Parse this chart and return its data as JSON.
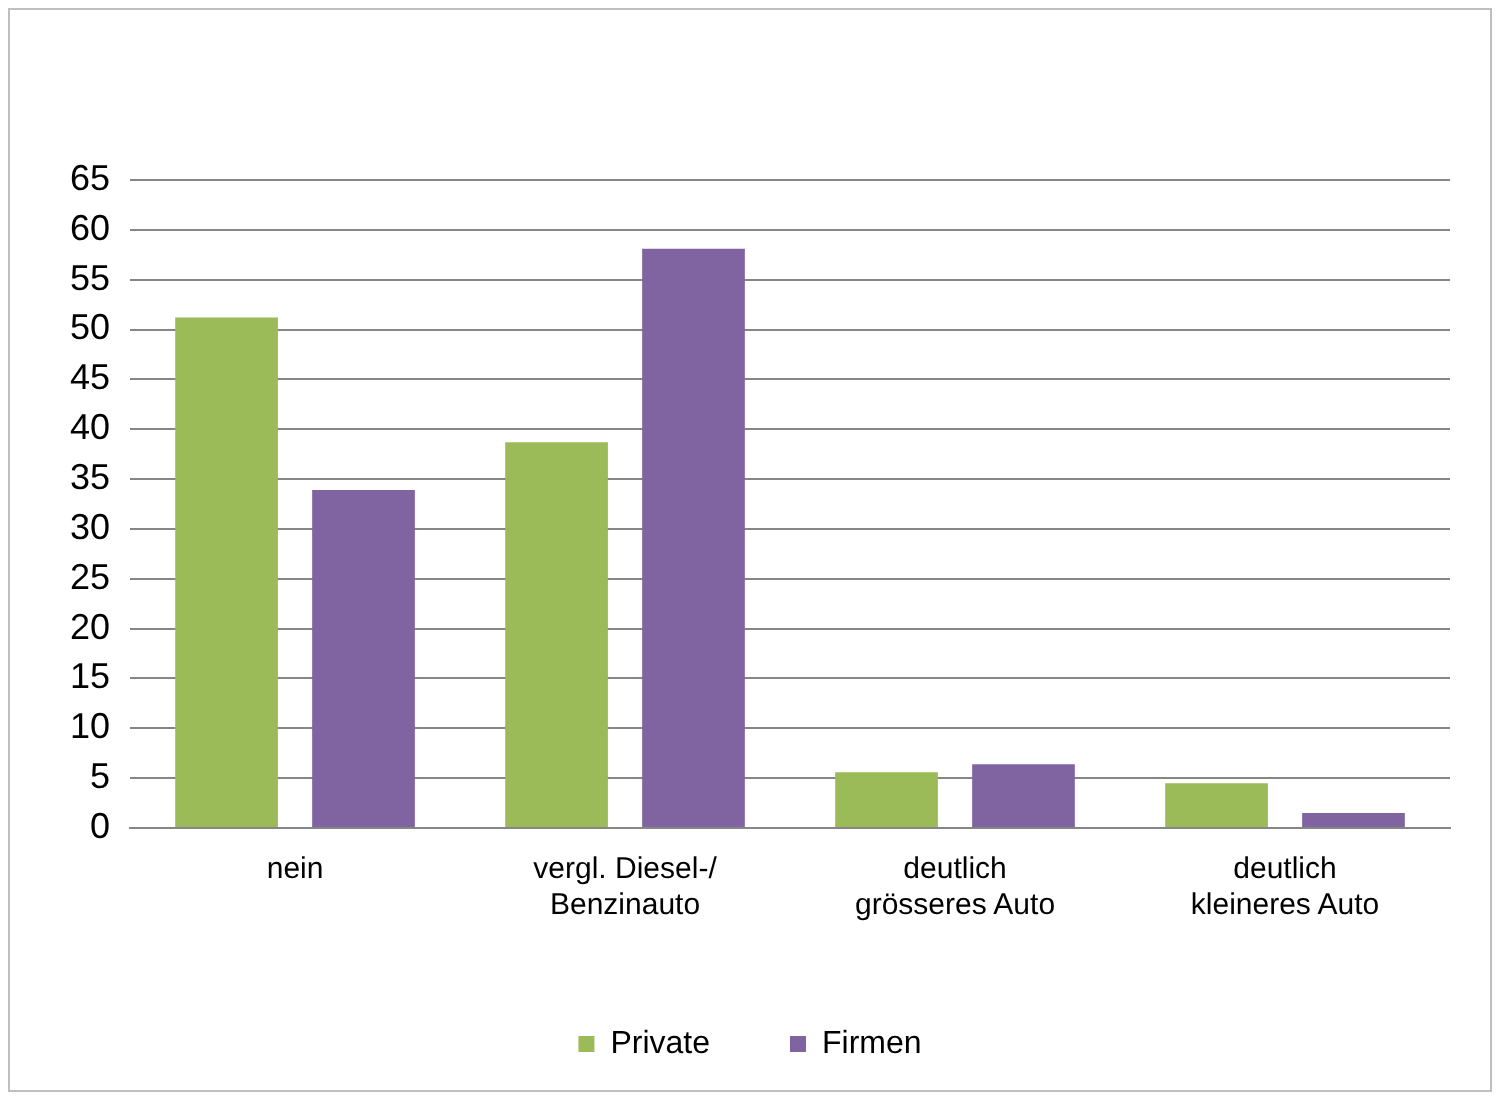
{
  "chart_data": {
    "type": "bar",
    "categories": [
      "nein",
      "vergl. Diesel-/ Benzinauto",
      "deutlich grösseres Auto",
      "deutlich kleineres Auto"
    ],
    "series": [
      {
        "name": "Private",
        "color": "#9bbb59",
        "values": [
          51.2,
          38.7,
          5.6,
          4.5
        ]
      },
      {
        "name": "Firmen",
        "color": "#8064a2",
        "values": [
          33.9,
          58.1,
          6.4,
          1.5
        ]
      }
    ],
    "ylim": [
      0,
      65
    ],
    "yticks": [
      0,
      5,
      10,
      15,
      20,
      25,
      30,
      35,
      40,
      45,
      50,
      55,
      60,
      65
    ],
    "grid": "y",
    "legend": "bottom"
  }
}
